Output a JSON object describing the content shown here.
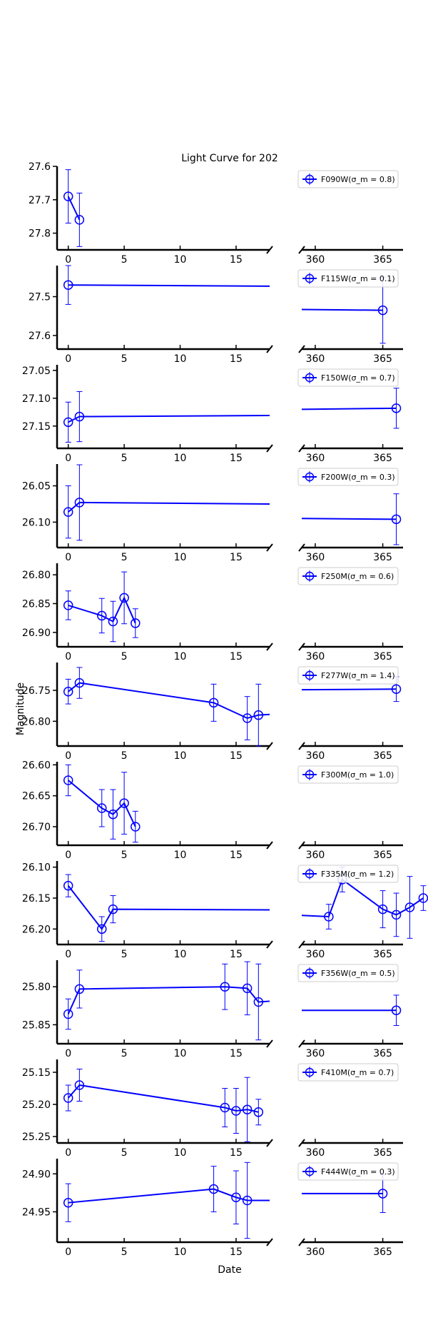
{
  "chart_data": {
    "type": "line",
    "title": "Light Curve for 202",
    "xlabel": "Date",
    "ylabel": "Magnitude",
    "y_inverted": true,
    "broken_x_axis": true,
    "x_segments": [
      [
        -1,
        18
      ],
      [
        359,
        366.5
      ]
    ],
    "color": "#0000ff",
    "grid": false,
    "legend_placement": "top-right",
    "panels": [
      {
        "filter": "F090W",
        "legend": "F090W(σ_m = 0.8)",
        "ylim": [
          27.6,
          27.85
        ],
        "yticks": [
          27.6,
          27.7,
          27.8
        ],
        "ytick_labels": [
          "27.6",
          "27.7",
          "27.8"
        ],
        "xticks_left": [
          "0",
          "5",
          "10",
          "15"
        ],
        "xticks_right": [
          "360",
          "365"
        ],
        "points": [
          {
            "x": 0,
            "y": 27.69,
            "err": 0.08
          },
          {
            "x": 1,
            "y": 27.76,
            "err": 0.08
          }
        ],
        "line_to_edge": false,
        "right_line": null
      },
      {
        "filter": "F115W",
        "legend": "F115W(σ_m = 0.1)",
        "ylim": [
          27.42,
          27.635
        ],
        "yticks": [
          27.5,
          27.6
        ],
        "ytick_labels": [
          "27.5",
          "27.6"
        ],
        "xticks_left": [
          "0",
          "5",
          "10",
          "15"
        ],
        "xticks_right": [
          "360",
          "365"
        ],
        "points": [
          {
            "x": 0,
            "y": 27.47,
            "err": 0.05
          },
          {
            "x": 365,
            "y": 27.535,
            "err": 0.085
          }
        ],
        "line_to_edge": true,
        "edge_y": 27.473,
        "right_line": [
          [
            359,
            27.533
          ],
          [
            365,
            27.535
          ]
        ]
      },
      {
        "filter": "F150W",
        "legend": "F150W(σ_m = 0.7)",
        "ylim": [
          27.04,
          27.19
        ],
        "yticks": [
          27.05,
          27.1,
          27.15
        ],
        "ytick_labels": [
          "27.05",
          "27.10",
          "27.15"
        ],
        "xticks_left": [
          "0",
          "5",
          "10",
          "15"
        ],
        "xticks_right": [
          "360",
          "365"
        ],
        "points": [
          {
            "x": 0,
            "y": 27.143,
            "err": 0.036
          },
          {
            "x": 1,
            "y": 27.133,
            "err": 0.045
          },
          {
            "x": 366,
            "y": 27.118,
            "err": 0.036
          }
        ],
        "line_to_edge": true,
        "edge_y": 27.131,
        "right_line": [
          [
            359,
            27.12
          ],
          [
            366,
            27.118
          ]
        ]
      },
      {
        "filter": "F200W",
        "legend": "F200W(σ_m = 0.3)",
        "ylim": [
          26.02,
          26.135
        ],
        "yticks": [
          26.05,
          26.1
        ],
        "ytick_labels": [
          "26.05",
          "26.10"
        ],
        "xticks_left": [
          "0",
          "5",
          "10",
          "15"
        ],
        "xticks_right": [
          "360",
          "365"
        ],
        "points": [
          {
            "x": 0,
            "y": 26.086,
            "err": 0.036
          },
          {
            "x": 1,
            "y": 26.073,
            "err": 0.052
          },
          {
            "x": 366,
            "y": 26.096,
            "err": 0.035
          }
        ],
        "line_to_edge": true,
        "edge_y": 26.075,
        "right_line": [
          [
            359,
            26.095
          ],
          [
            366,
            26.096
          ]
        ]
      },
      {
        "filter": "F250M",
        "legend": "F250M(σ_m = 0.6)",
        "ylim": [
          26.78,
          26.925
        ],
        "yticks": [
          26.8,
          26.85,
          26.9
        ],
        "ytick_labels": [
          "26.80",
          "26.85",
          "26.90"
        ],
        "xticks_left": [
          "0",
          "5",
          "10",
          "15"
        ],
        "xticks_right": [
          "360",
          "365"
        ],
        "points": [
          {
            "x": 0,
            "y": 26.853,
            "err": 0.025
          },
          {
            "x": 3,
            "y": 26.871,
            "err": 0.03
          },
          {
            "x": 4,
            "y": 26.881,
            "err": 0.035
          },
          {
            "x": 5,
            "y": 26.84,
            "err": 0.045
          },
          {
            "x": 6,
            "y": 26.884,
            "err": 0.025
          }
        ],
        "line_to_edge": false,
        "right_line": null
      },
      {
        "filter": "F277W",
        "legend": "F277W(σ_m = 1.4)",
        "ylim": [
          26.705,
          26.84
        ],
        "yticks": [
          26.75,
          26.8
        ],
        "ytick_labels": [
          "26.75",
          "26.80"
        ],
        "xticks_left": [
          "0",
          "5",
          "10",
          "15"
        ],
        "xticks_right": [
          "360",
          "365"
        ],
        "points": [
          {
            "x": 0,
            "y": 26.752,
            "err": 0.02
          },
          {
            "x": 1,
            "y": 26.738,
            "err": 0.025
          },
          {
            "x": 13,
            "y": 26.77,
            "err": 0.03
          },
          {
            "x": 16,
            "y": 26.795,
            "err": 0.035
          },
          {
            "x": 17,
            "y": 26.79,
            "err": 0.05
          },
          {
            "x": 366,
            "y": 26.748,
            "err": 0.02
          }
        ],
        "line_to_edge": true,
        "edge_y": 26.789,
        "right_line": [
          [
            359,
            26.749
          ],
          [
            366,
            26.748
          ]
        ]
      },
      {
        "filter": "F300M",
        "legend": "F300M(σ_m = 1.0)",
        "ylim": [
          26.595,
          26.73
        ],
        "yticks": [
          26.6,
          26.65,
          26.7
        ],
        "ytick_labels": [
          "26.60",
          "26.65",
          "26.70"
        ],
        "xticks_left": [
          "0",
          "5",
          "10",
          "15"
        ],
        "xticks_right": [
          "360",
          "365"
        ],
        "points": [
          {
            "x": 0,
            "y": 26.625,
            "err": 0.025
          },
          {
            "x": 3,
            "y": 26.67,
            "err": 0.03
          },
          {
            "x": 4,
            "y": 26.68,
            "err": 0.04
          },
          {
            "x": 5,
            "y": 26.662,
            "err": 0.05
          },
          {
            "x": 6,
            "y": 26.7,
            "err": 0.025
          }
        ],
        "line_to_edge": false,
        "right_line": null
      },
      {
        "filter": "F335M",
        "legend": "F335M(σ_m = 1.2)",
        "ylim": [
          26.09,
          26.225
        ],
        "yticks": [
          26.1,
          26.15,
          26.2
        ],
        "ytick_labels": [
          "26.10",
          "26.15",
          "26.20"
        ],
        "xticks_left": [
          "0",
          "5",
          "10",
          "15"
        ],
        "xticks_right": [
          "360",
          "365"
        ],
        "points": [
          {
            "x": 0,
            "y": 26.13,
            "err": 0.018
          },
          {
            "x": 3,
            "y": 26.2,
            "err": 0.02
          },
          {
            "x": 4,
            "y": 26.168,
            "err": 0.022
          },
          {
            "x": 361,
            "y": 26.18,
            "err": 0.02
          },
          {
            "x": 362,
            "y": 26.12,
            "err": 0.02
          },
          {
            "x": 365,
            "y": 26.168,
            "err": 0.03
          },
          {
            "x": 366,
            "y": 26.177,
            "err": 0.035
          },
          {
            "x": 367,
            "y": 26.165,
            "err": 0.05
          },
          {
            "x": 368,
            "y": 26.15,
            "err": 0.02
          }
        ],
        "line_to_edge": true,
        "edge_y": 26.169,
        "right_line": [
          [
            359,
            26.178
          ]
        ]
      },
      {
        "filter": "F356W",
        "legend": "F356W(σ_m = 0.5)",
        "ylim": [
          25.765,
          25.875
        ],
        "yticks": [
          25.8,
          25.85
        ],
        "ytick_labels": [
          "25.80",
          "25.85"
        ],
        "xticks_left": [
          "0",
          "5",
          "10",
          "15"
        ],
        "xticks_right": [
          "360",
          "365"
        ],
        "points": [
          {
            "x": 0,
            "y": 25.836,
            "err": 0.02
          },
          {
            "x": 1,
            "y": 25.803,
            "err": 0.025
          },
          {
            "x": 14,
            "y": 25.8,
            "err": 0.03
          },
          {
            "x": 16,
            "y": 25.802,
            "err": 0.035
          },
          {
            "x": 17,
            "y": 25.82,
            "err": 0.05
          },
          {
            "x": 366,
            "y": 25.831,
            "err": 0.02
          }
        ],
        "line_to_edge": true,
        "edge_y": 25.819,
        "right_line": [
          [
            359,
            25.831
          ],
          [
            366,
            25.831
          ]
        ]
      },
      {
        "filter": "F410M",
        "legend": "F410M(σ_m = 0.7)",
        "ylim": [
          25.13,
          25.26
        ],
        "yticks": [
          25.15,
          25.2,
          25.25
        ],
        "ytick_labels": [
          "25.15",
          "25.20",
          "25.25"
        ],
        "xticks_left": [
          "0",
          "5",
          "10",
          "15"
        ],
        "xticks_right": [
          "360",
          "365"
        ],
        "points": [
          {
            "x": 0,
            "y": 25.19,
            "err": 0.02
          },
          {
            "x": 1,
            "y": 25.17,
            "err": 0.025
          },
          {
            "x": 14,
            "y": 25.205,
            "err": 0.03
          },
          {
            "x": 15,
            "y": 25.21,
            "err": 0.035
          },
          {
            "x": 16,
            "y": 25.208,
            "err": 0.05
          },
          {
            "x": 17,
            "y": 25.212,
            "err": 0.02
          }
        ],
        "line_to_edge": false,
        "right_line": null
      },
      {
        "filter": "F444W",
        "legend": "F444W(σ_m = 0.3)",
        "ylim": [
          24.88,
          24.99
        ],
        "yticks": [
          24.9,
          24.95
        ],
        "ytick_labels": [
          "24.90",
          "24.95"
        ],
        "xticks_left": [
          "0",
          "5",
          "10",
          "15"
        ],
        "xticks_right": [
          "360",
          "365"
        ],
        "points": [
          {
            "x": 0,
            "y": 24.938,
            "err": 0.025
          },
          {
            "x": 13,
            "y": 24.92,
            "err": 0.03
          },
          {
            "x": 15,
            "y": 24.931,
            "err": 0.035
          },
          {
            "x": 16,
            "y": 24.935,
            "err": 0.05
          },
          {
            "x": 365,
            "y": 24.926,
            "err": 0.025
          }
        ],
        "line_to_edge": true,
        "edge_y": 24.935,
        "right_line": [
          [
            359,
            24.926
          ],
          [
            365,
            24.926
          ]
        ]
      }
    ]
  }
}
